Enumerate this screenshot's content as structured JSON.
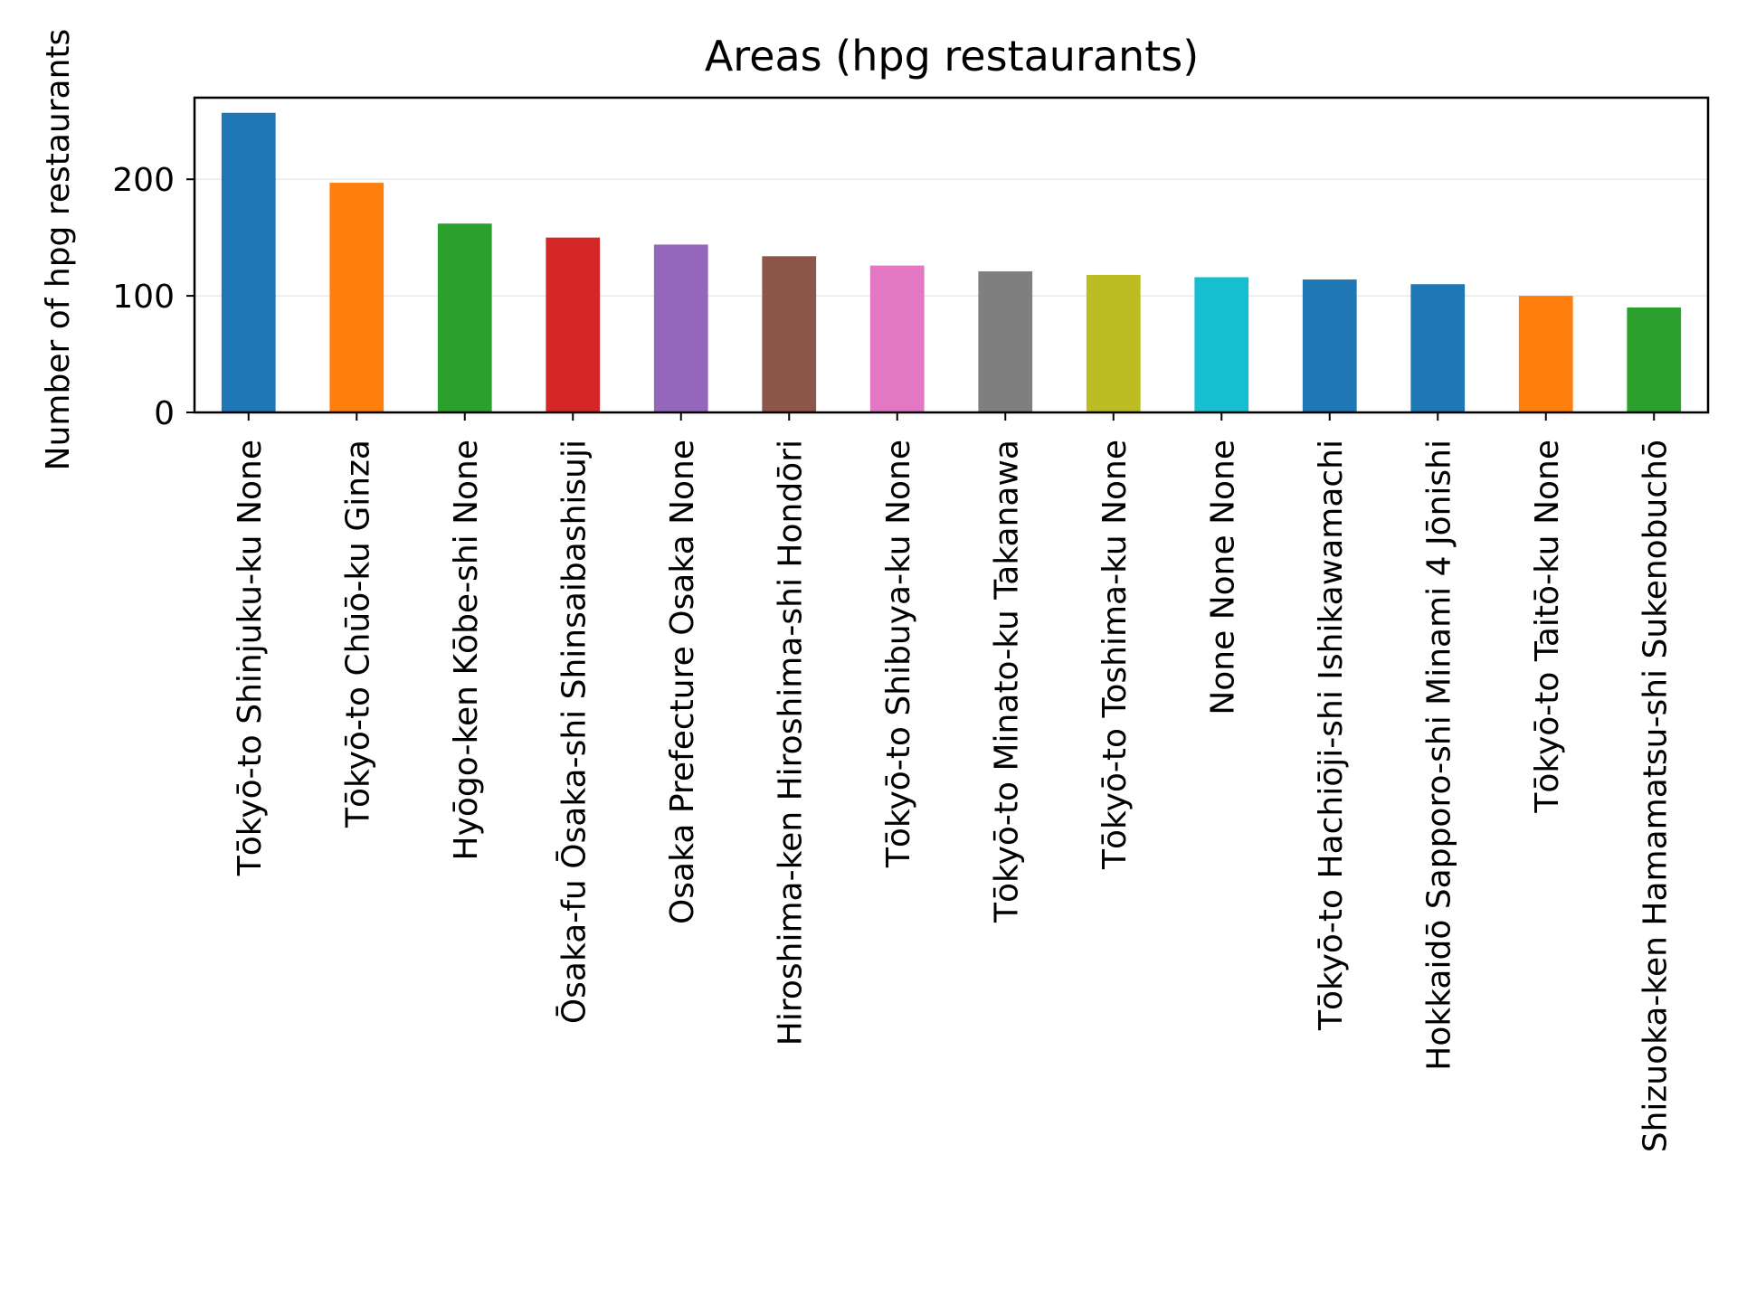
{
  "chart_data": {
    "type": "bar",
    "title": "Areas (hpg restaurants)",
    "xlabel": "",
    "ylabel": "Number of hpg restaurants",
    "ylim": [
      0,
      270
    ],
    "yticks": [
      0,
      100,
      200
    ],
    "grid": true,
    "legend": "none",
    "categories": [
      "Tōkyō-to Shinjuku-ku None",
      "Tōkyō-to Chūō-ku Ginza",
      "Hyōgo-ken Kōbe-shi None",
      "Ōsaka-fu Ōsaka-shi Shinsaibashisuji",
      "Osaka Prefecture Osaka None",
      "Hiroshima-ken Hiroshima-shi Hondōri",
      "Tōkyō-to Shibuya-ku None",
      "Tōkyō-to Minato-ku Takanawa",
      "Tōkyō-to Toshima-ku None",
      "None None None",
      "Tōkyō-to Hachiōji-shi Ishikawamachi",
      "Hokkaidō Sapporo-shi Minami 4 Jōnishi",
      "Tōkyō-to Taitō-ku None",
      "Shizuoka-ken Hamamatsu-shi Sukenobuchō"
    ],
    "values": [
      257,
      197,
      162,
      150,
      144,
      134,
      126,
      121,
      118,
      116,
      114,
      110,
      100,
      90
    ],
    "colors": [
      "#1f77b4",
      "#ff7f0e",
      "#2ca02c",
      "#d62728",
      "#9467bd",
      "#8c564b",
      "#e377c2",
      "#7f7f7f",
      "#bcbd22",
      "#17becf",
      "#1f77b4",
      "#1f77b4",
      "#ff7f0e",
      "#2ca02c"
    ]
  }
}
